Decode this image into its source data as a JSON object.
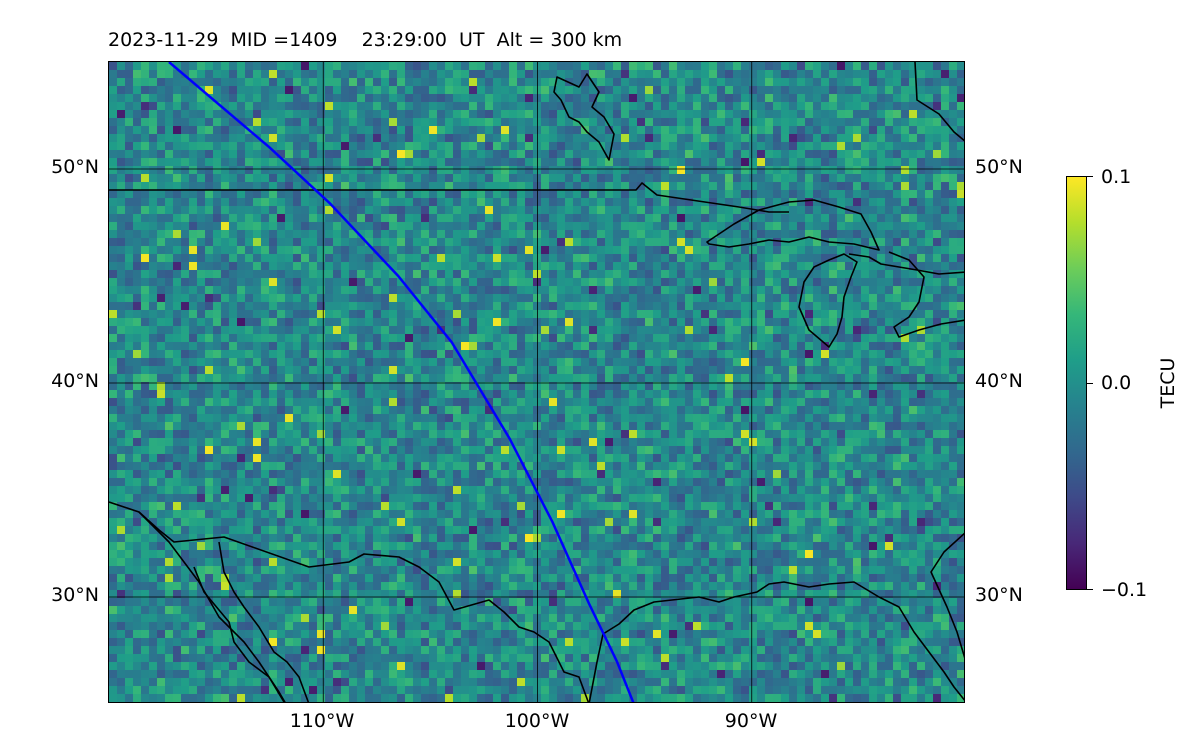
{
  "header": {
    "title": "2023-11-29  MID =1409    23:29:00  UT  Alt = 300 km"
  },
  "map": {
    "projection": "equirectangular",
    "lon_range": [
      -120,
      -80
    ],
    "lat_range": [
      25,
      55
    ],
    "lat_ticks": [
      {
        "lat": 50,
        "label": "50°N"
      },
      {
        "lat": 40,
        "label": "40°N"
      },
      {
        "lat": 30,
        "label": "30°N"
      }
    ],
    "lon_ticks": [
      {
        "lon": -110,
        "label": "110°W"
      },
      {
        "lon": -100,
        "label": "100°W"
      },
      {
        "lon": -90,
        "label": "90°W"
      }
    ],
    "gridlines": true,
    "coastline_color": "#000000",
    "track_color": "#0000ff",
    "track": [
      [
        -117.2,
        55
      ],
      [
        -112.5,
        51
      ],
      [
        -109.7,
        48.4
      ],
      [
        -106.5,
        45
      ],
      [
        -104,
        41.9
      ],
      [
        -101.3,
        37.4
      ],
      [
        -99.3,
        33.5
      ],
      [
        -97.6,
        29.7
      ],
      [
        -96.3,
        27
      ],
      [
        -95.5,
        25
      ]
    ],
    "colormap": "viridis",
    "field_description": "TEC perturbation field (TECU), mottled noise mostly near 0"
  },
  "colorbar": {
    "label": "TECU",
    "min": -0.1,
    "max": 0.1,
    "ticks": [
      {
        "value": 0.1,
        "label": "0.1"
      },
      {
        "value": 0.0,
        "label": "0.0"
      },
      {
        "value": -0.1,
        "label": "−0.1"
      }
    ]
  }
}
